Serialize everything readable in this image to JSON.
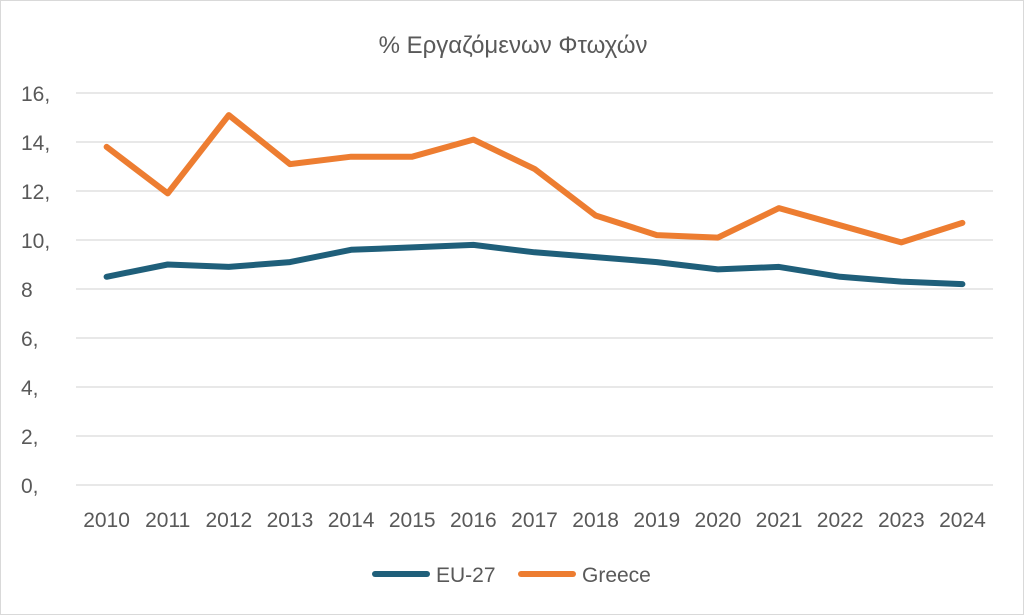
{
  "chart_data": {
    "type": "line",
    "title": "% Εργαζόμενων Φτωχών",
    "xlabel": "",
    "ylabel": "",
    "categories": [
      "2010",
      "2011",
      "2012",
      "2013",
      "2014",
      "2015",
      "2016",
      "2017",
      "2018",
      "2019",
      "2020",
      "2021",
      "2022",
      "2023",
      "2024"
    ],
    "y_ticks": [
      0,
      2,
      4,
      6,
      8,
      10,
      12,
      14,
      16
    ],
    "y_tick_labels": [
      "0,",
      "2,",
      "4,",
      "6,",
      "8",
      "10,",
      "12,",
      "14,",
      "16,"
    ],
    "ylim": [
      0,
      16
    ],
    "grid": true,
    "legend_position": "bottom",
    "series": [
      {
        "name": "EU-27",
        "color": "#1f5f7a",
        "values": [
          8.5,
          9.0,
          8.9,
          9.1,
          9.6,
          9.7,
          9.8,
          9.5,
          9.3,
          9.1,
          8.8,
          8.9,
          8.5,
          8.3,
          8.2
        ]
      },
      {
        "name": "Greece",
        "color": "#ed7d31",
        "values": [
          13.8,
          11.9,
          15.1,
          13.1,
          13.4,
          13.4,
          14.1,
          12.9,
          11.0,
          10.2,
          10.1,
          11.3,
          10.6,
          9.9,
          10.7
        ]
      }
    ]
  }
}
